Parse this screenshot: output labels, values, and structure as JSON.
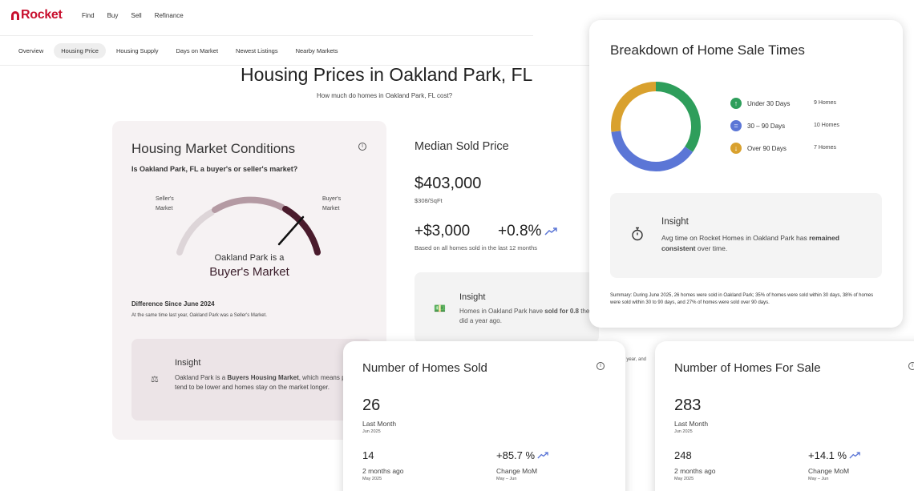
{
  "brand": {
    "name": "Rocket"
  },
  "nav": {
    "links": [
      "Find",
      "Buy",
      "Sell",
      "Refinance"
    ]
  },
  "tabs": [
    "Overview",
    "Housing Price",
    "Housing Supply",
    "Days on Market",
    "Newest Listings",
    "Nearby Markets"
  ],
  "page": {
    "title": "Housing Prices in Oakland Park, FL",
    "subtitle": "How much do homes in Oakland Park, FL cost?"
  },
  "market_conditions": {
    "title": "Housing Market Conditions",
    "question": "Is Oakland Park, FL a buyer's or seller's market?",
    "seller_label_1": "Seller's",
    "seller_label_2": "Market",
    "buyer_label_1": "Buyer's",
    "buyer_label_2": "Market",
    "gauge_pre": "Oakland Park is a",
    "gauge_main": "Buyer's Market",
    "diff_title": "Difference Since June 2024",
    "diff_text": "At the same time last year, Oakland Park was a Seller's Market.",
    "insight_title": "Insight",
    "insight_text_1": "Oakland Park is a ",
    "insight_bold": "Buyers Housing Market",
    "insight_text_2": ", which means prices tend to be lower and homes stay on the market longer."
  },
  "median_sold": {
    "title": "Median Sold Price",
    "price": "$403,000",
    "per_sqft": "$308/SqFt",
    "delta": "+$3,000",
    "pct": "+0.8%",
    "based_on": "Based on all homes sold in the last 12 months",
    "insight_title": "Insight",
    "insight_text_1": "Homes in Oakland Park have ",
    "insight_bold": "sold for 0.8",
    "insight_text_2": "they did a year ago.",
    "cut_text": "t year, and"
  },
  "breakdown": {
    "title": "Breakdown of Home Sale Times",
    "items": [
      {
        "label": "Under 30 Days",
        "count": "9 Homes",
        "value": 9,
        "color": "#2e9e5b",
        "icon": "↑"
      },
      {
        "label": "30 – 90 Days",
        "count": "10 Homes",
        "value": 10,
        "color": "#5b76d6",
        "icon": "="
      },
      {
        "label": "Over 90 Days",
        "count": "7 Homes",
        "value": 7,
        "color": "#d9a12e",
        "icon": "↓"
      }
    ],
    "insight_title": "Insight",
    "insight_text_1": "Avg time on Rocket Homes in Oakland Park has ",
    "insight_bold": "remained consistent",
    "insight_text_2": " over time.",
    "summary": "Summary: During June 2025, 26 homes were sold in Oakland Park; 35% of homes were sold within 30 days, 38% of homes were sold within 30 to 90 days, and 27% of homes were sold over 90 days."
  },
  "homes_sold": {
    "title": "Number of Homes Sold",
    "last_month_value": "26",
    "last_month_label": "Last Month",
    "last_month_date": "Jun 2025",
    "two_months_value": "14",
    "two_months_label": "2 months ago",
    "two_months_date": "May 2025",
    "mom_value": "+85.7 %",
    "mom_label": "Change MoM",
    "mom_date": "May – Jun"
  },
  "homes_for_sale": {
    "title": "Number of Homes For Sale",
    "last_month_value": "283",
    "last_month_label": "Last Month",
    "last_month_date": "Jun 2025",
    "two_months_value": "248",
    "two_months_label": "2 months ago",
    "two_months_date": "May 2025",
    "mom_value": "+14.1 %",
    "mom_label": "Change MoM",
    "mom_date": "May – Jun"
  },
  "colors": {
    "accent": "#c8102e",
    "gauge_dark": "#4a1b2c",
    "gauge_mid": "#b49aa3",
    "gauge_light": "#ddd5d8",
    "trend": "#5b76d6"
  }
}
